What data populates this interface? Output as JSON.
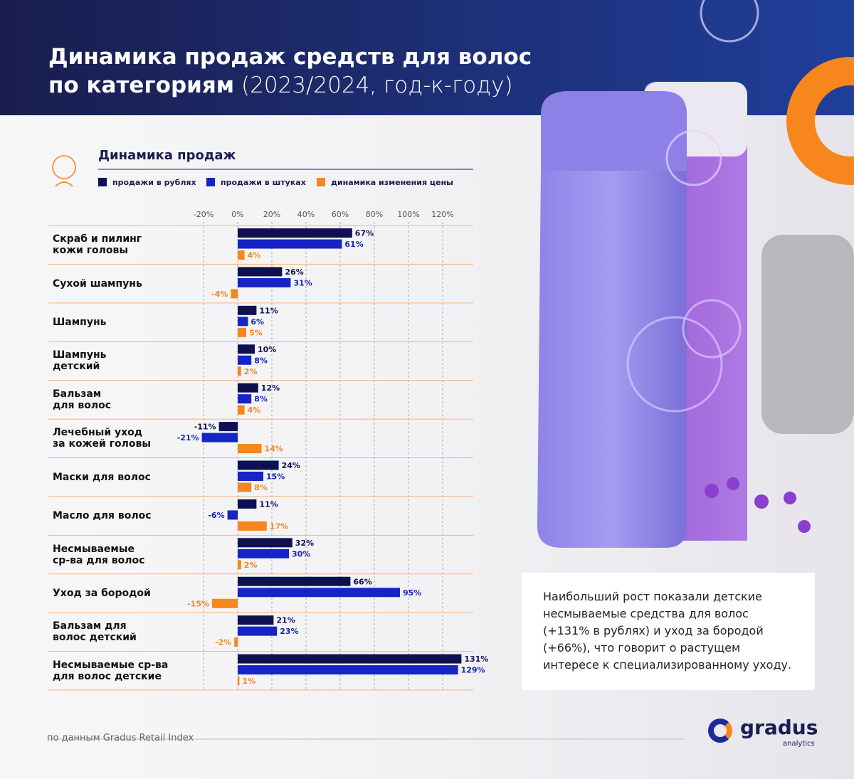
{
  "header": {
    "title_bold": "Динамика продаж средств для волос\nпо категориям",
    "title_light": "(2023/2024, год-к-году)"
  },
  "chart_data": {
    "type": "hbar",
    "title": "Динамика продаж",
    "categories": [
      "Скраб и пилинг\nкожи головы",
      "Сухой шампунь",
      "Шампунь",
      "Шампунь\nдетский",
      "Бальзам\nдля волос",
      "Лечебный уход\nза кожей головы",
      "Маски для волос",
      "Масло для волос",
      "Несмываемые\nср-ва для волос",
      "Уход за бородой",
      "Бальзам для\nволос детский",
      "Несмываемые ср-ва\nдля волос детские"
    ],
    "series": [
      {
        "name": "продажи в рублях",
        "color": "#0d1152",
        "values": [
          67,
          26,
          11,
          10,
          12,
          -11,
          24,
          11,
          32,
          66,
          21,
          131
        ],
        "value_labels": [
          "67%",
          "26%",
          "11%",
          "10%",
          "12%",
          "-11%",
          "24%",
          "11%",
          "32%",
          "66%",
          "21%",
          "131%"
        ]
      },
      {
        "name": "продажи в штуках",
        "color": "#1524c4",
        "values": [
          61,
          31,
          6,
          8,
          8,
          -21,
          15,
          -6,
          30,
          95,
          23,
          129
        ],
        "value_labels": [
          "61%",
          "31%",
          "6%",
          "8%",
          "8%",
          "-21%",
          "15%",
          "-6%",
          "30%",
          "95%",
          "23%",
          "129%"
        ]
      },
      {
        "name": "динамика изменения цены",
        "color": "#f7861c",
        "values": [
          4,
          -4,
          5,
          2,
          4,
          14,
          8,
          17,
          2,
          -15,
          -2,
          1
        ],
        "value_labels": [
          "4%",
          "-4%",
          "5%",
          "2%",
          "4%",
          "14%",
          "8%",
          "17%",
          "2%",
          "-15%",
          "-2%",
          "1%"
        ]
      }
    ],
    "xlim": [
      -25,
      135
    ],
    "xticks": [
      {
        "value": -20,
        "label": "-20%"
      },
      {
        "value": 0,
        "label": "0%"
      },
      {
        "value": 20,
        "label": "20%"
      },
      {
        "value": 40,
        "label": "40%"
      },
      {
        "value": 60,
        "label": "60%"
      },
      {
        "value": 80,
        "label": "80%"
      },
      {
        "value": 100,
        "label": "100%"
      },
      {
        "value": 120,
        "label": "120%"
      }
    ],
    "grid": true
  },
  "note": "Наибольший рост показали детские\nнесмываемые средства для волос\n(+131% в рублях) и уход за бородой\n(+66%), что говорит о растущем\nинтересе к специализированному уходу.",
  "source": "по данным Gradus Retail Index",
  "logo": {
    "name": "gradus",
    "sub": "analytics"
  }
}
